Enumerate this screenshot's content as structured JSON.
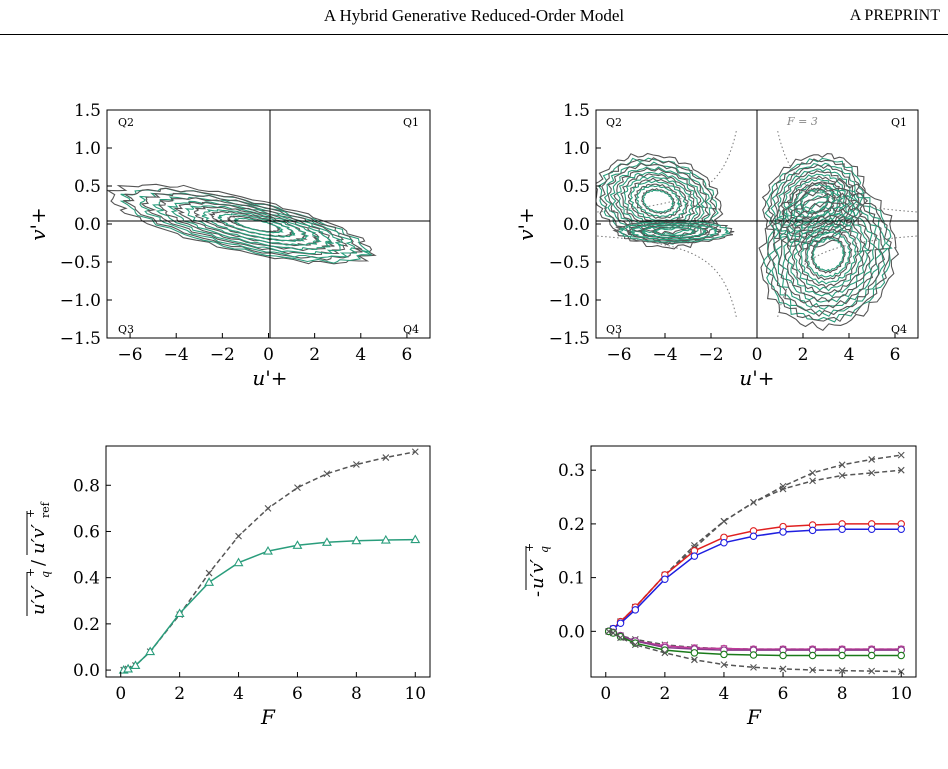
{
  "header": {
    "title": "A Hybrid Generative Reduced-Order Model",
    "running_head": "A PREPRINT"
  },
  "colors": {
    "reference": "#555555",
    "model": "#2a9d7c",
    "red": "#e02020",
    "blue": "#1f1fe0",
    "purple": "#8a3a8a",
    "green": "#1a7a1a"
  },
  "panels": {
    "a": {
      "xlabel": "u'+",
      "ylabel": "v'+",
      "quadrants": [
        "Q2",
        "Q1",
        "Q3",
        "Q4"
      ]
    },
    "b": {
      "xlabel": "u'+",
      "ylabel": "v'+",
      "quadrants": [
        "Q2",
        "Q1",
        "Q3",
        "Q4"
      ],
      "annotation": "F = 3"
    },
    "c": {
      "xlabel": "F"
    },
    "d": {
      "xlabel": "F"
    }
  },
  "chart_data": [
    {
      "type": "contour",
      "description_panel": "a",
      "xlim": [
        -7,
        7
      ],
      "ylim": [
        -1.5,
        1.5
      ],
      "xticks": [
        "−6",
        "−4",
        "−2",
        "0",
        "2",
        "4",
        "6"
      ],
      "yticks": [
        "−1.5",
        "−1.0",
        "−0.5",
        "0.0",
        "0.5",
        "1.0",
        "1.5"
      ]
    },
    {
      "type": "contour",
      "description_panel": "b",
      "xlim": [
        -7,
        7
      ],
      "ylim": [
        -1.5,
        1.5
      ],
      "xticks": [
        "−6",
        "−4",
        "−2",
        "0",
        "2",
        "4",
        "6"
      ],
      "yticks": [
        "−1.5",
        "−1.0",
        "−0.5",
        "0.0",
        "0.5",
        "1.0",
        "1.5"
      ]
    },
    {
      "type": "line",
      "xlim": [
        -0.5,
        10.5
      ],
      "ylim": [
        -0.03,
        0.97
      ],
      "xticks": [
        "0",
        "2",
        "4",
        "6",
        "8",
        "10"
      ],
      "yticks": [
        "0.0",
        "0.2",
        "0.4",
        "0.6",
        "0.8"
      ],
      "x": [
        0.1,
        0.25,
        0.5,
        1,
        2,
        3,
        4,
        5,
        6,
        7,
        8,
        9,
        10
      ],
      "series": [
        {
          "style": "dashed-x-gray",
          "values": [
            0.0,
            0.005,
            0.02,
            0.08,
            0.24,
            0.42,
            0.58,
            0.7,
            0.79,
            0.85,
            0.89,
            0.92,
            0.945
          ]
        },
        {
          "style": "solid-triangle-green",
          "values": [
            0.0,
            0.005,
            0.02,
            0.08,
            0.245,
            0.38,
            0.465,
            0.515,
            0.54,
            0.553,
            0.56,
            0.563,
            0.565
          ]
        }
      ]
    },
    {
      "type": "line",
      "xlim": [
        -0.5,
        10.5
      ],
      "ylim": [
        -0.085,
        0.345
      ],
      "xticks": [
        "0",
        "2",
        "4",
        "6",
        "8",
        "10"
      ],
      "yticks": [
        "0.0",
        "0.1",
        "0.2",
        "0.3"
      ],
      "x": [
        0.1,
        0.25,
        0.5,
        1,
        2,
        3,
        4,
        5,
        6,
        7,
        8,
        9,
        10
      ],
      "series": [
        {
          "style": "dashed-x-gray",
          "values": [
            0.0,
            0.005,
            0.018,
            0.045,
            0.105,
            0.16,
            0.205,
            0.24,
            0.27,
            0.295,
            0.31,
            0.32,
            0.328
          ]
        },
        {
          "style": "dashed-x-gray",
          "values": [
            0.0,
            0.005,
            0.018,
            0.045,
            0.105,
            0.155,
            0.205,
            0.24,
            0.265,
            0.28,
            0.29,
            0.295,
            0.3
          ]
        },
        {
          "style": "solid-circle-red",
          "values": [
            0.0,
            0.005,
            0.018,
            0.045,
            0.105,
            0.15,
            0.175,
            0.187,
            0.195,
            0.198,
            0.2,
            0.2,
            0.2
          ]
        },
        {
          "style": "solid-circle-blue",
          "values": [
            0.0,
            0.005,
            0.015,
            0.04,
            0.097,
            0.14,
            0.165,
            0.177,
            0.185,
            0.188,
            0.19,
            0.19,
            0.19
          ]
        },
        {
          "style": "dashed-x-gray",
          "values": [
            0.0,
            -0.002,
            -0.008,
            -0.015,
            -0.025,
            -0.03,
            -0.032,
            -0.033,
            -0.033,
            -0.033,
            -0.033,
            -0.033,
            -0.033
          ]
        },
        {
          "style": "solid-circle-pink",
          "values": [
            0.0,
            -0.002,
            -0.008,
            -0.018,
            -0.027,
            -0.031,
            -0.032,
            -0.033,
            -0.033,
            -0.033,
            -0.033,
            -0.033,
            -0.033
          ]
        },
        {
          "style": "solid-circle-purple",
          "values": [
            0.0,
            -0.002,
            -0.008,
            -0.018,
            -0.03,
            -0.033,
            -0.035,
            -0.035,
            -0.035,
            -0.035,
            -0.035,
            -0.035,
            -0.035
          ]
        },
        {
          "style": "solid-circle-green",
          "values": [
            0.0,
            -0.003,
            -0.01,
            -0.022,
            -0.035,
            -0.04,
            -0.043,
            -0.044,
            -0.045,
            -0.045,
            -0.045,
            -0.045,
            -0.045
          ]
        },
        {
          "style": "dashed-x-gray",
          "values": [
            0.0,
            -0.003,
            -0.012,
            -0.025,
            -0.04,
            -0.053,
            -0.062,
            -0.067,
            -0.07,
            -0.072,
            -0.073,
            -0.074,
            -0.075
          ]
        }
      ]
    }
  ]
}
